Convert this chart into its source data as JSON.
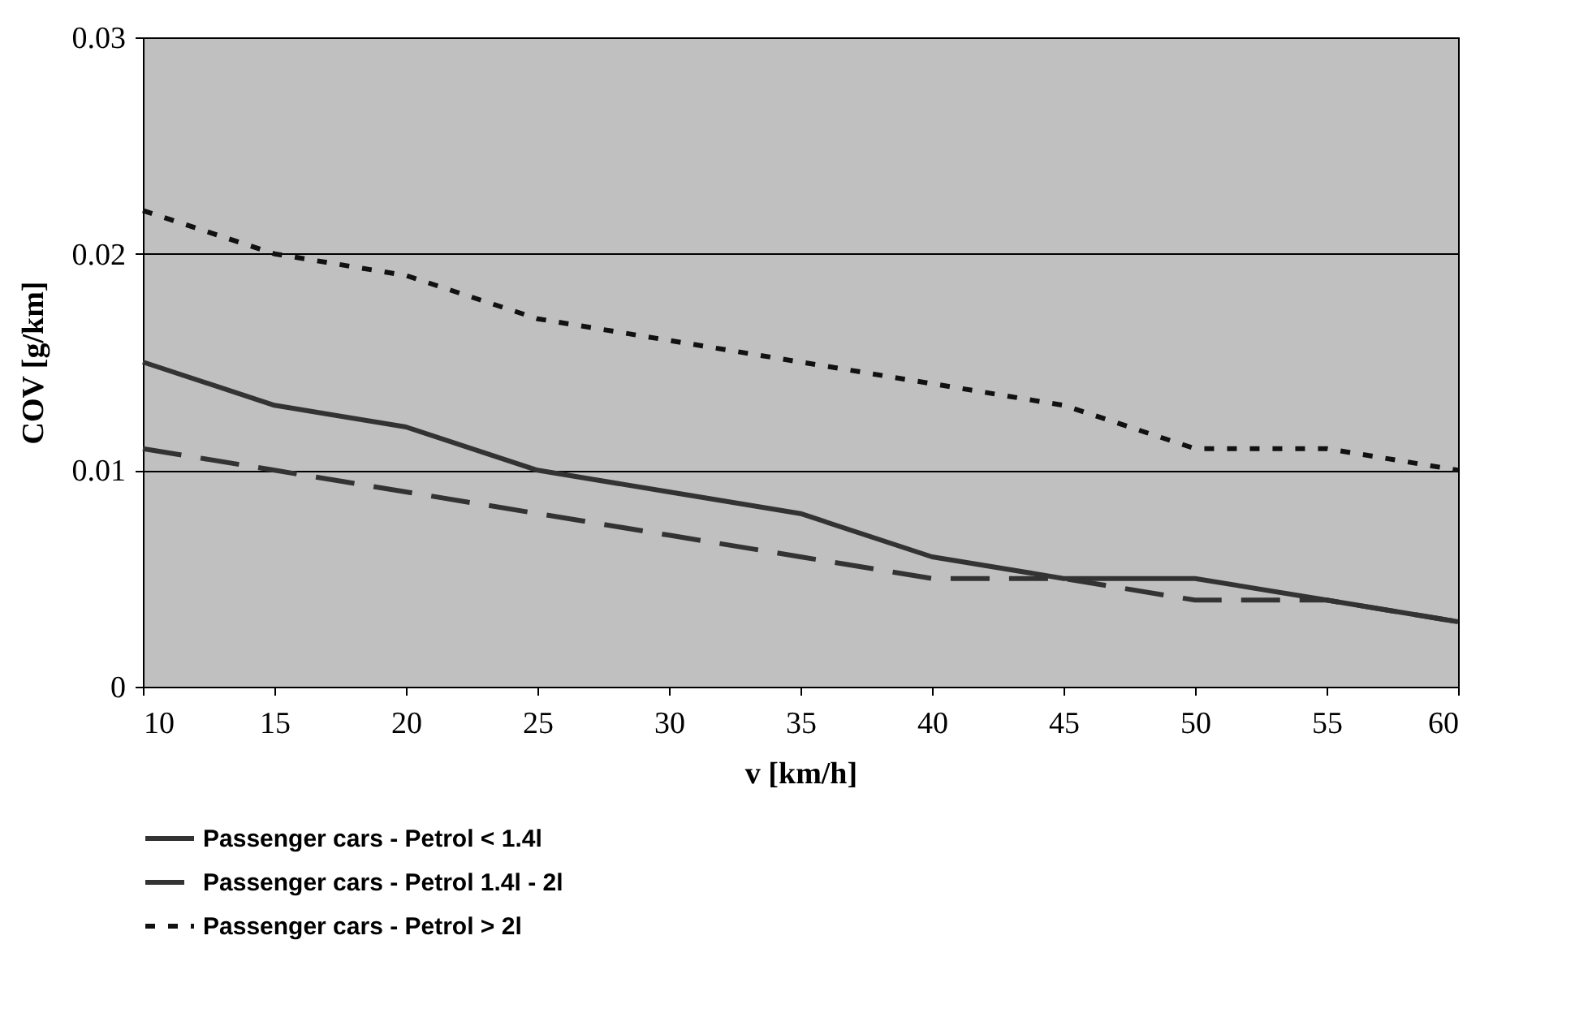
{
  "chart_data": {
    "type": "line",
    "xlabel": "v [km/h]",
    "ylabel": "COV [g/km]",
    "x": [
      10,
      15,
      20,
      25,
      30,
      35,
      40,
      45,
      50,
      55,
      60
    ],
    "series": [
      {
        "name": "Passenger cars - Petrol < 1.4l",
        "color": "#333333",
        "line_style": "solid",
        "values": [
          0.015,
          0.013,
          0.012,
          0.01,
          0.009,
          0.008,
          0.006,
          0.005,
          0.005,
          0.004,
          0.003
        ]
      },
      {
        "name": "Passenger cars - Petrol 1.4l - 2l",
        "color": "#333333",
        "line_style": "dashed",
        "values": [
          0.011,
          0.01,
          0.009,
          0.008,
          0.007,
          0.006,
          0.005,
          0.005,
          0.004,
          0.004,
          0.003
        ]
      },
      {
        "name": "Passenger cars - Petrol > 2l",
        "color": "#111111",
        "line_style": "dotted",
        "values": [
          0.022,
          0.02,
          0.019,
          0.017,
          0.016,
          0.015,
          0.014,
          0.013,
          0.011,
          0.011,
          0.01
        ]
      }
    ],
    "xlim": [
      10,
      60
    ],
    "xticks": [
      10,
      15,
      20,
      25,
      30,
      35,
      40,
      45,
      50,
      55,
      60
    ],
    "ylim": [
      0,
      0.03
    ],
    "yticks": [
      0,
      0.01,
      0.02,
      0.03
    ],
    "grid": "y",
    "legend": "bottom",
    "marker": "none"
  }
}
